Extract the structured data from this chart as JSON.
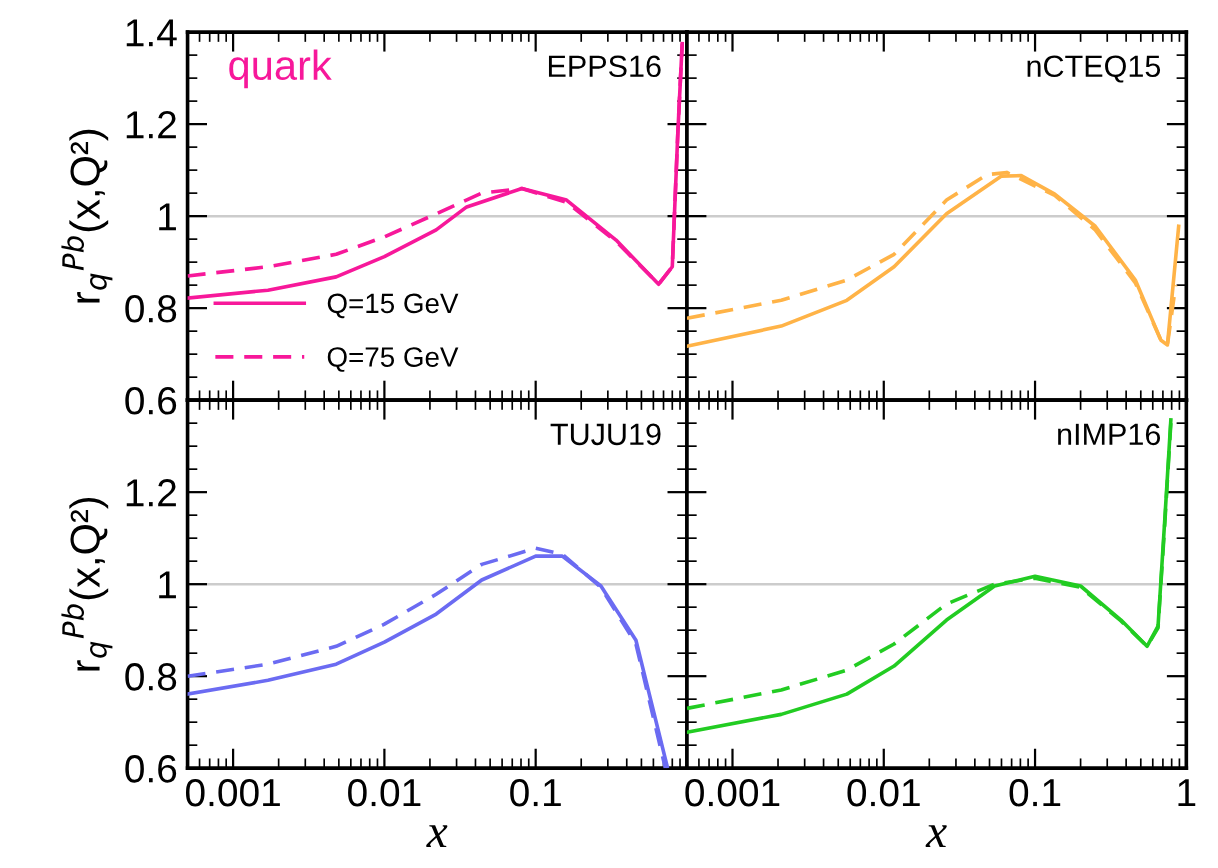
{
  "chart_data": [
    {
      "type": "line",
      "title": "EPPS16",
      "ylabel": "r$_{q}$$^{Pb}$(x,Q²)",
      "annotations": [
        "quark"
      ],
      "xlim": [
        0.0005,
        1
      ],
      "ylim": [
        0.6,
        1.4
      ],
      "xticks": [
        {
          "value": 0.001,
          "label": null
        },
        {
          "value": 0.01,
          "label": null
        },
        {
          "value": 0.1,
          "label": null
        }
      ],
      "yticks": [
        0.6,
        0.8,
        1,
        1.2,
        1.4
      ],
      "log": "x",
      "tick_labels": "y",
      "legend": "bottom left",
      "ref_lines": [
        {
          "axis": "y",
          "value": 1,
          "color": "#cccccc"
        }
      ],
      "series": [
        {
          "name": "Q=15 GeV",
          "color": "#f7189a",
          "line_style": "solid",
          "x": [
            0.0005,
            0.0017,
            0.0048,
            0.01,
            0.022,
            0.035,
            0.081,
            0.16,
            0.34,
            0.65,
            0.8,
            0.87,
            0.93
          ],
          "values": [
            0.822,
            0.839,
            0.868,
            0.912,
            0.97,
            1.02,
            1.06,
            1.035,
            0.948,
            0.852,
            0.89,
            1.18,
            1.375
          ]
        },
        {
          "name": "Q=75 GeV",
          "color": "#f7189a",
          "line_style": "dashed",
          "x": [
            0.0005,
            0.0017,
            0.0048,
            0.01,
            0.022,
            0.044,
            0.081,
            0.16,
            0.34,
            0.65,
            0.8,
            0.87,
            0.93
          ],
          "values": [
            0.87,
            0.89,
            0.917,
            0.955,
            1.005,
            1.05,
            1.06,
            1.03,
            0.945,
            0.852,
            0.89,
            1.18,
            1.375
          ]
        }
      ]
    },
    {
      "type": "line",
      "title": "nCTEQ15",
      "xlim": [
        0.0005,
        1
      ],
      "ylim": [
        0.6,
        1.4
      ],
      "xticks": [
        {
          "value": 0.001,
          "label": null
        },
        {
          "value": 0.01,
          "label": null
        },
        {
          "value": 0.1,
          "label": null
        },
        {
          "value": 1,
          "label": null
        }
      ],
      "yticks": [
        {
          "value": 0.6,
          "label": null
        },
        {
          "value": 0.8,
          "label": null
        },
        {
          "value": 1,
          "label": null
        },
        {
          "value": 1.2,
          "label": null
        },
        {
          "value": 1.4,
          "label": null
        }
      ],
      "log": "x",
      "tick_labels": false,
      "ref_lines": [
        {
          "axis": "y",
          "value": 1,
          "color": "#cccccc"
        }
      ],
      "series": [
        {
          "color": "#ffb347",
          "line_style": "solid",
          "x": [
            0.0005,
            0.0021,
            0.0057,
            0.0117,
            0.026,
            0.06,
            0.081,
            0.135,
            0.25,
            0.46,
            0.68,
            0.75,
            0.89
          ],
          "values": [
            0.717,
            0.761,
            0.817,
            0.89,
            1.005,
            1.087,
            1.088,
            1.048,
            0.978,
            0.861,
            0.73,
            0.72,
            0.978
          ]
        },
        {
          "color": "#ffb347",
          "line_style": "dashed",
          "x": [
            0.0005,
            0.0021,
            0.0057,
            0.0117,
            0.026,
            0.048,
            0.065,
            0.135,
            0.25,
            0.46,
            0.68,
            0.75,
            0.85
          ],
          "values": [
            0.778,
            0.817,
            0.861,
            0.917,
            1.035,
            1.09,
            1.095,
            1.045,
            0.97,
            0.855,
            0.73,
            0.72,
            0.85
          ]
        }
      ]
    },
    {
      "type": "line",
      "title": "TUJU19",
      "ylabel": "r$_{q}$$^{Pb}$(x,Q²)",
      "xlabel": "x",
      "xlim": [
        0.0005,
        1
      ],
      "ylim": [
        0.6,
        1.4
      ],
      "xticks": [
        0.001,
        0.01,
        0.1
      ],
      "yticks": [
        0.6,
        0.8,
        1,
        1.2,
        {
          "value": 1.4,
          "label": null
        }
      ],
      "log": "x",
      "ref_lines": [
        {
          "axis": "y",
          "value": 1,
          "color": "#cccccc"
        }
      ],
      "series": [
        {
          "color": "#6b6bf2",
          "line_style": "solid",
          "x": [
            0.0005,
            0.0017,
            0.0048,
            0.01,
            0.022,
            0.044,
            0.1,
            0.15,
            0.27,
            0.46,
            0.74
          ],
          "values": [
            0.761,
            0.791,
            0.826,
            0.874,
            0.935,
            1.009,
            1.061,
            1.061,
            0.996,
            0.878,
            0.604
          ]
        },
        {
          "color": "#6b6bf2",
          "line_style": "dashed",
          "x": [
            0.0005,
            0.0017,
            0.0048,
            0.01,
            0.022,
            0.044,
            0.1,
            0.15,
            0.27,
            0.46,
            0.72
          ],
          "values": [
            0.8,
            0.826,
            0.865,
            0.913,
            0.978,
            1.043,
            1.078,
            1.065,
            0.993,
            0.87,
            0.6
          ]
        }
      ]
    },
    {
      "type": "line",
      "title": "nIMP16",
      "xlabel": "x",
      "xlim": [
        0.0005,
        1
      ],
      "ylim": [
        0.6,
        1.4
      ],
      "xticks": [
        0.001,
        0.01,
        0.1,
        1
      ],
      "yticks": [
        {
          "value": 0.6,
          "label": null
        },
        {
          "value": 0.8,
          "label": null
        },
        {
          "value": 1,
          "label": null
        },
        {
          "value": 1.2,
          "label": null
        },
        {
          "value": 1.4,
          "label": null
        }
      ],
      "log": "x",
      "tick_labels": "x",
      "ref_lines": [
        {
          "axis": "y",
          "value": 1,
          "color": "#cccccc"
        }
      ],
      "series": [
        {
          "color": "#22cc22",
          "line_style": "solid",
          "x": [
            0.0005,
            0.0021,
            0.0057,
            0.0117,
            0.026,
            0.054,
            0.1,
            0.2,
            0.37,
            0.55,
            0.65,
            0.72,
            0.79
          ],
          "values": [
            0.678,
            0.717,
            0.761,
            0.822,
            0.922,
            0.996,
            1.017,
            0.996,
            0.922,
            0.865,
            0.909,
            1.139,
            1.357
          ]
        },
        {
          "color": "#22cc22",
          "line_style": "dashed",
          "x": [
            0.0005,
            0.0021,
            0.0057,
            0.0117,
            0.026,
            0.054,
            0.1,
            0.2,
            0.37,
            0.55,
            0.65,
            0.72,
            0.79
          ],
          "values": [
            0.73,
            0.77,
            0.813,
            0.87,
            0.957,
            1.0,
            1.013,
            0.993,
            0.92,
            0.865,
            0.905,
            1.13,
            1.35
          ]
        }
      ]
    }
  ]
}
